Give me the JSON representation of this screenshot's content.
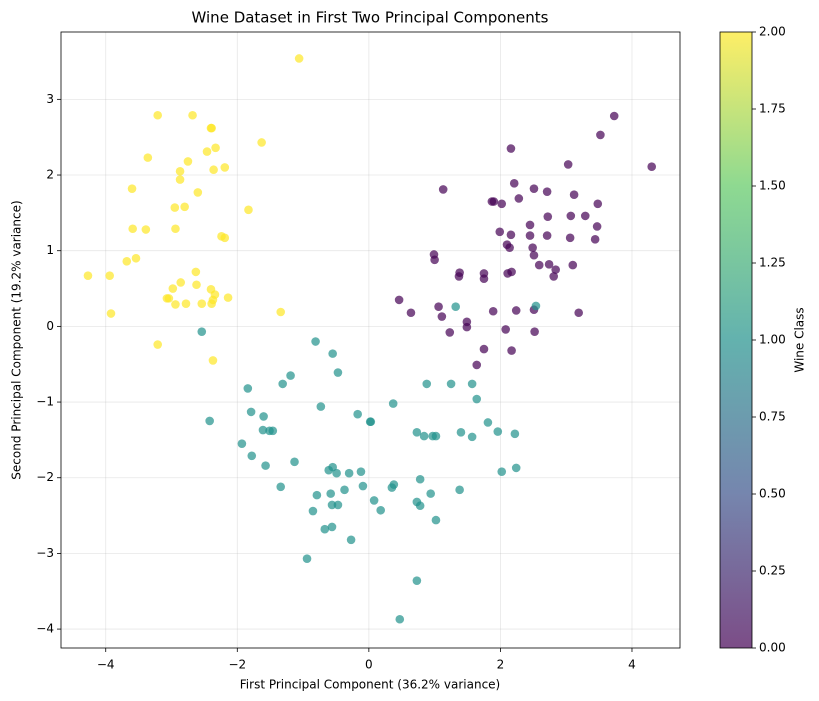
{
  "chart_data": {
    "type": "scatter",
    "title": "Wine Dataset in First Two Principal Components",
    "x_label": "First Principal Component (36.2% variance)",
    "y_label": "Second Principal Component (19.2% variance)",
    "xlim": [
      -4.68,
      4.73
    ],
    "ylim": [
      -4.25,
      3.89
    ],
    "xticks": [
      {
        "value": -4,
        "label": "−4"
      },
      {
        "value": -2,
        "label": "−2"
      },
      0,
      2,
      4
    ],
    "yticks": [
      {
        "value": -4,
        "label": "−4"
      },
      {
        "value": -3,
        "label": "−3"
      },
      {
        "value": -2,
        "label": "−2"
      },
      {
        "value": -1,
        "label": "−1"
      },
      0,
      1,
      2,
      3
    ],
    "grid": true,
    "alpha": 0.7,
    "x": [
      -1.06,
      -3.21,
      -2.68,
      -2.4,
      -2.39,
      -2.33,
      -2.46,
      -1.63,
      -3.36,
      -2.75,
      -2.87,
      -2.87,
      -2.19,
      -2.36,
      -3.6,
      -2.6,
      -1.83,
      -2.95,
      -2.8,
      -2.94,
      -3.39,
      -3.59,
      -2.24,
      -2.19,
      -3.54,
      -3.68,
      -4.27,
      -3.94,
      -2.63,
      -2.86,
      -2.62,
      -2.4,
      -2.34,
      -2.98,
      -2.14,
      -3.07,
      -3.04,
      -2.78,
      -2.37,
      -2.39,
      -2.94,
      -2.54,
      -3.92,
      -1.34,
      -3.21,
      -2.37,
      4.3,
      3.73,
      3.52,
      2.16,
      3.03,
      2.21,
      2.51,
      1.13,
      1.9,
      1.87,
      2.02,
      2.28,
      2.71,
      3.12,
      3.48,
      3.29,
      3.07,
      2.72,
      2.45,
      1.99,
      2.16,
      2.45,
      2.71,
      3.47,
      3.06,
      3.44,
      2.1,
      2.49,
      2.14,
      0.99,
      1.0,
      2.51,
      2.59,
      2.74,
      3.1,
      2.84,
      2.81,
      2.17,
      2.11,
      1.38,
      1.37,
      1.75,
      1.75,
      0.46,
      1.06,
      1.11,
      0.64,
      2.51,
      2.24,
      1.89,
      1.49,
      1.23,
      2.08,
      2.52,
      1.75,
      2.17,
      1.64,
      3.19,
      1.49,
      -2.54,
      1.32,
      2.54,
      -0.81,
      -0.55,
      -0.47,
      0.88,
      1.25,
      1.57,
      -1.19,
      -1.84,
      -1.31,
      -0.73,
      -2.42,
      -1.79,
      -1.6,
      -1.61,
      -1.51,
      -1.46,
      0.37,
      -0.17,
      0.02,
      0.03,
      1.64,
      -1.93,
      0.73,
      0.84,
      0.97,
      1.02,
      1.4,
      1.57,
      1.81,
      1.96,
      2.22,
      -1.78,
      -1.57,
      -1.13,
      -0.61,
      -0.55,
      -0.49,
      -0.3,
      -0.12,
      0.78,
      2.02,
      2.24,
      -1.34,
      -0.37,
      -0.09,
      0.38,
      0.35,
      -0.79,
      0.08,
      1.38,
      -0.58,
      -0.56,
      -0.47,
      0.18,
      0.73,
      0.78,
      -0.85,
      0.94,
      1.02,
      -0.67,
      -0.56,
      -0.27,
      -0.94,
      0.73,
      0.47
    ],
    "y": [
      3.54,
      2.79,
      2.79,
      2.62,
      2.62,
      2.36,
      2.31,
      2.43,
      2.23,
      2.18,
      2.05,
      1.94,
      2.1,
      2.07,
      1.82,
      1.77,
      1.54,
      1.57,
      1.58,
      1.29,
      1.28,
      1.29,
      1.19,
      1.17,
      0.9,
      0.86,
      0.67,
      0.67,
      0.72,
      0.58,
      0.55,
      0.49,
      0.42,
      0.5,
      0.38,
      0.37,
      0.37,
      0.3,
      0.35,
      0.3,
      0.29,
      0.3,
      0.17,
      0.19,
      -0.24,
      -0.45,
      2.11,
      2.78,
      2.53,
      2.35,
      2.14,
      1.89,
      1.82,
      1.81,
      1.65,
      1.65,
      1.62,
      1.69,
      1.78,
      1.74,
      1.62,
      1.46,
      1.46,
      1.45,
      1.34,
      1.25,
      1.21,
      1.2,
      1.2,
      1.32,
      1.17,
      1.15,
      1.08,
      1.04,
      1.04,
      0.95,
      0.88,
      0.94,
      0.81,
      0.82,
      0.81,
      0.75,
      0.66,
      0.72,
      0.7,
      0.71,
      0.66,
      0.7,
      0.63,
      0.35,
      0.26,
      0.13,
      0.18,
      0.22,
      0.21,
      0.2,
      -0.01,
      -0.08,
      -0.04,
      -0.07,
      -0.3,
      -0.32,
      -0.51,
      0.18,
      0.06,
      -0.07,
      0.26,
      0.27,
      -0.2,
      -0.36,
      -0.61,
      -0.76,
      -0.76,
      -0.76,
      -0.65,
      -0.82,
      -0.76,
      -1.06,
      -1.25,
      -1.13,
      -1.19,
      -1.37,
      -1.38,
      -1.38,
      -1.02,
      -1.16,
      -1.26,
      -1.26,
      -0.96,
      -1.55,
      -1.4,
      -1.45,
      -1.45,
      -1.45,
      -1.4,
      -1.46,
      -1.27,
      -1.39,
      -1.42,
      -1.71,
      -1.84,
      -1.79,
      -1.9,
      -1.86,
      -1.94,
      -1.94,
      -1.92,
      -2.02,
      -1.92,
      -1.87,
      -2.12,
      -2.16,
      -2.11,
      -2.09,
      -2.13,
      -2.23,
      -2.3,
      -2.16,
      -2.21,
      -2.36,
      -2.36,
      -2.43,
      -2.32,
      -2.37,
      -2.44,
      -2.21,
      -2.56,
      -2.68,
      -2.65,
      -2.82,
      -3.07,
      -3.36,
      -3.87
    ],
    "c": [
      2,
      2,
      2,
      2,
      2,
      2,
      2,
      2,
      2,
      2,
      2,
      2,
      2,
      2,
      2,
      2,
      2,
      2,
      2,
      2,
      2,
      2,
      2,
      2,
      2,
      2,
      2,
      2,
      2,
      2,
      2,
      2,
      2,
      2,
      2,
      2,
      2,
      2,
      2,
      2,
      2,
      2,
      2,
      2,
      2,
      2,
      0,
      0,
      0,
      0,
      0,
      0,
      0,
      0,
      0,
      0,
      0,
      0,
      0,
      0,
      0,
      0,
      0,
      0,
      0,
      0,
      0,
      0,
      0,
      0,
      0,
      0,
      0,
      0,
      0,
      0,
      0,
      0,
      0,
      0,
      0,
      0,
      0,
      0,
      0,
      0,
      0,
      0,
      0,
      0,
      0,
      0,
      0,
      0,
      0,
      0,
      0,
      0,
      0,
      0,
      0,
      0,
      0,
      0,
      0,
      1,
      1,
      1,
      1,
      1,
      1,
      1,
      1,
      1,
      1,
      1,
      1,
      1,
      1,
      1,
      1,
      1,
      1,
      1,
      1,
      1,
      1,
      1,
      1,
      1,
      1,
      1,
      1,
      1,
      1,
      1,
      1,
      1,
      1,
      1,
      1,
      1,
      1,
      1,
      1,
      1,
      1,
      1,
      1,
      1,
      1,
      1,
      1,
      1,
      1,
      1,
      1,
      1,
      1,
      1,
      1,
      1,
      1,
      1,
      1,
      1,
      1,
      1,
      1,
      1,
      1,
      1,
      1
    ],
    "colorbar": {
      "label": "Wine Class",
      "lim": [
        0,
        2
      ],
      "ticks": [
        {
          "value": 0,
          "label": "0.00"
        },
        {
          "value": 0.25,
          "label": "0.25"
        },
        {
          "value": 0.5,
          "label": "0.50"
        },
        {
          "value": 0.75,
          "label": "0.75"
        },
        {
          "value": 1,
          "label": "1.00"
        },
        {
          "value": 1.25,
          "label": "1.25"
        },
        {
          "value": 1.5,
          "label": "1.50"
        },
        {
          "value": 1.75,
          "label": "1.75"
        },
        {
          "value": 2,
          "label": "2.00"
        }
      ],
      "colormap": [
        "#440154",
        "#3b528b",
        "#21918c",
        "#5ec962",
        "#fde725"
      ]
    }
  }
}
